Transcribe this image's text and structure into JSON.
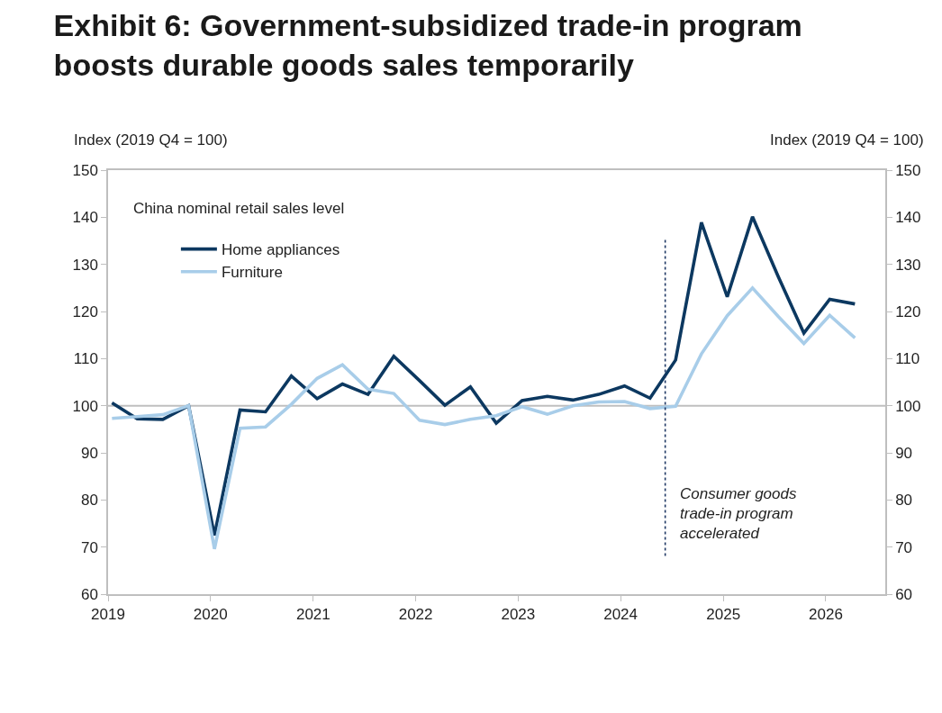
{
  "chart_data": {
    "type": "line",
    "title": "Exhibit 6: Government-subsidized trade-in program boosts durable goods sales temporarily",
    "ylabel": "Index (2019 Q4 = 100)",
    "y2label": "Index (2019 Q4 = 100)",
    "legend_title": "China nominal retail sales level",
    "x": [
      "2019-01-15",
      "2019-04-15",
      "2019-07-15",
      "2019-10-15",
      "2020-01-15",
      "2020-04-15",
      "2020-07-15",
      "2020-10-15",
      "2021-01-15",
      "2021-04-15",
      "2021-07-15",
      "2021-10-15",
      "2022-01-15",
      "2022-04-15",
      "2022-07-15",
      "2022-10-15",
      "2023-01-15",
      "2023-04-15",
      "2023-07-15",
      "2023-10-15",
      "2024-01-15",
      "2024-04-15",
      "2024-07-15",
      "2024-10-15",
      "2025-01-15",
      "2025-04-15",
      "2025-07-15",
      "2025-10-15",
      "2026-01-15",
      "2026-04-15"
    ],
    "series": [
      {
        "name": "Home appliances",
        "color": "#0c3860",
        "values": [
          100.6,
          97.2,
          97.1,
          100,
          72.5,
          99.1,
          98.7,
          106.3,
          101.5,
          104.6,
          102.4,
          110.5,
          105.3,
          100.1,
          104.0,
          96.3,
          101.1,
          102.0,
          101.2,
          102.4,
          104.2,
          101.6,
          109.7,
          138.9,
          123.1,
          140.1,
          127.5,
          115.4,
          122.6,
          121.6
        ]
      },
      {
        "name": "Furniture",
        "color": "#a8cde9",
        "values": [
          97.3,
          97.7,
          98.1,
          100,
          69.6,
          95.2,
          95.5,
          100.3,
          105.8,
          108.7,
          103.5,
          102.6,
          96.9,
          96.0,
          97.1,
          97.9,
          99.8,
          98.2,
          100.0,
          100.8,
          100.9,
          99.4,
          99.9,
          111.0,
          119.1,
          125.0,
          119.0,
          113.2,
          119.2,
          114.4
        ]
      }
    ],
    "xlim": [
      "2019-01",
      "2026-08"
    ],
    "xticks": [
      "2019",
      "2020",
      "2021",
      "2022",
      "2023",
      "2024",
      "2025",
      "2026"
    ],
    "ylim": [
      60,
      150
    ],
    "yticks": [
      60,
      70,
      80,
      90,
      100,
      110,
      120,
      130,
      140,
      150
    ],
    "y2lim": [
      60,
      150
    ],
    "y2ticks": [
      60,
      70,
      80,
      90,
      100,
      110,
      120,
      130,
      140,
      150
    ],
    "ref_lines": [
      {
        "axis": "y",
        "value": 100,
        "color": "#bfbfbf",
        "line_style": "solid"
      },
      {
        "axis": "x",
        "value": "2024-06-08",
        "label": "Consumer goods trade-in program accelerated",
        "color": "#1f3864",
        "line_style": "dotted"
      }
    ],
    "grid": false,
    "legend": "top left",
    "marker": "none",
    "line_style": "solid"
  }
}
